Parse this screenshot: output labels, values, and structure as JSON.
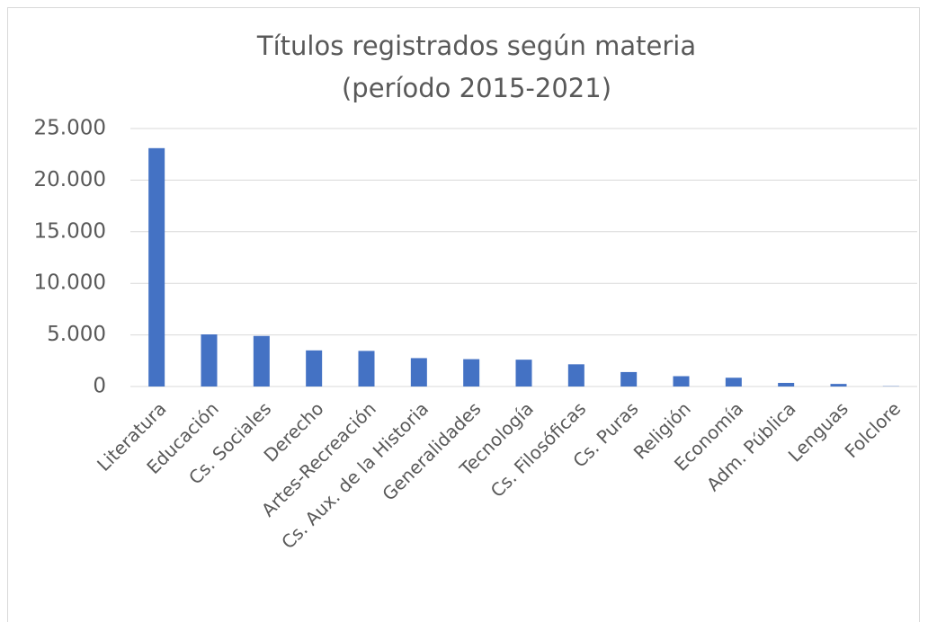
{
  "chart_data": {
    "type": "bar",
    "title": [
      "Títulos registrados según materia",
      "(período 2015-2021)"
    ],
    "categories": [
      "Literatura",
      "Educación",
      "Cs. Sociales",
      "Derecho",
      "Artes-Recreación",
      "Cs. Aux. de la Historia",
      "Generalidades",
      "Tecnología",
      "Cs. Filosóficas",
      "Cs. Puras",
      "Religión",
      "Economía",
      "Adm. Pública",
      "Lenguas",
      "Folclore"
    ],
    "values": [
      23100,
      5050,
      4900,
      3500,
      3450,
      2750,
      2650,
      2600,
      2150,
      1400,
      1000,
      850,
      350,
      250,
      30
    ],
    "color": "#4472c4",
    "ylim": [
      0,
      25000
    ],
    "yticks": [
      0,
      {
        "value": 5000,
        "label": "5.000"
      },
      {
        "value": 10000,
        "label": "10.000"
      },
      {
        "value": 15000,
        "label": "15.000"
      },
      {
        "value": 20000,
        "label": "20.000"
      },
      {
        "value": 25000,
        "label": "25.000"
      }
    ],
    "grid": true
  }
}
